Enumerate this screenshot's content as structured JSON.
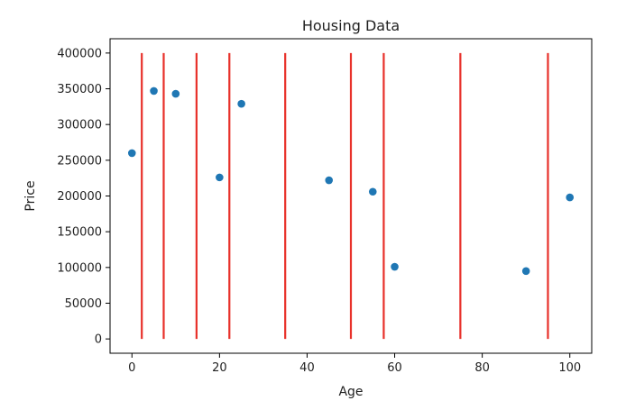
{
  "chart_data": {
    "type": "scatter",
    "title": "Housing Data",
    "xlabel": "Age",
    "ylabel": "Price",
    "xlim": [
      -5,
      105
    ],
    "ylim": [
      -20000,
      420000
    ],
    "xticks": [
      0,
      20,
      40,
      60,
      80,
      100
    ],
    "yticks": [
      0,
      50000,
      100000,
      150000,
      200000,
      250000,
      300000,
      350000,
      400000
    ],
    "grid": false,
    "legend": "none",
    "colors": {
      "points": "#1f77b4",
      "vlines": "#e8312a",
      "axes": "#000000"
    },
    "series": [
      {
        "x": [
          0,
          5,
          10,
          20,
          25,
          45,
          55,
          60,
          90,
          100
        ],
        "y": [
          260000,
          347000,
          343000,
          226000,
          329000,
          222000,
          206000,
          101000,
          95000,
          198000
        ]
      }
    ],
    "vlines": {
      "x": [
        2.25,
        7.25,
        14.75,
        22.25,
        35,
        50,
        57.5,
        75,
        95
      ],
      "ymin": 0,
      "ymax": 400000
    }
  }
}
